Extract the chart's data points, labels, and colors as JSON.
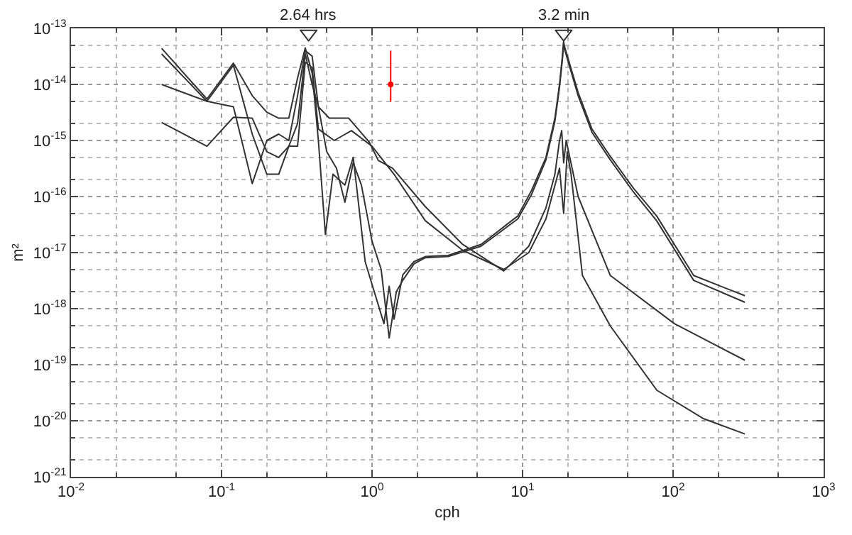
{
  "chart_data": {
    "type": "line",
    "xlabel": "cph",
    "ylabel": "m²",
    "log": "xy",
    "grid": true,
    "line_style": "solid",
    "xlim": [
      0.01,
      1000
    ],
    "ylim": [
      1e-21,
      1e-13
    ],
    "xticks": [
      {
        "value": 0.01,
        "label": "10$^{-2}$"
      },
      {
        "value": 0.1,
        "label": "10$^{-1}$"
      },
      {
        "value": 1,
        "label": "10$^{0}$"
      },
      {
        "value": 10,
        "label": "10$^{1}$"
      },
      {
        "value": 100,
        "label": "10$^{2}$"
      },
      {
        "value": 1000,
        "label": "10$^{3}$"
      }
    ],
    "yticks": [
      {
        "value": 1e-21,
        "label": "10$^{-21}$"
      },
      {
        "value": 1e-20,
        "label": "10$^{-20}$"
      },
      {
        "value": 1e-19,
        "label": "10$^{-19}$"
      },
      {
        "value": 1e-18,
        "label": "10$^{-18}$"
      },
      {
        "value": 1e-17,
        "label": "10$^{-17}$"
      },
      {
        "value": 1e-16,
        "label": "10$^{-16}$"
      },
      {
        "value": 1e-15,
        "label": "10$^{-15}$"
      },
      {
        "value": 1e-14,
        "label": "10$^{-14}$"
      },
      {
        "value": 1e-13,
        "label": "10$^{-13}$"
      }
    ],
    "annotations": [
      {
        "text": "2.64 hrs",
        "x": 0.379,
        "y": 1e-13
      },
      {
        "text": "3.2 min",
        "x": 18.75,
        "y": 1e-13
      }
    ],
    "series": [
      {
        "type": "line",
        "color": "#333333",
        "x": [
          0.04,
          0.08,
          0.12,
          0.16,
          0.2,
          0.24,
          0.28,
          0.32,
          0.36,
          0.4,
          0.44,
          0.49,
          0.55,
          0.66,
          0.75,
          0.9,
          1.2,
          1.3,
          1.4,
          1.6,
          1.9,
          2.26,
          3.2,
          5.3,
          9.3,
          11.5,
          14.3,
          16.4,
          17.6,
          18.4,
          18.75,
          18.9,
          23.4,
          28.9,
          38.3,
          54.6,
          77.8,
          137,
          300
        ],
        "values": [
          4.4e-14,
          5.5e-15,
          2.4e-14,
          6.3e-15,
          3.2e-15,
          2.5e-15,
          2.5e-15,
          1.3e-14,
          4.5e-14,
          1.6e-14,
          1e-15,
          2.1e-17,
          2.5e-16,
          1.6e-16,
          5e-16,
          6.9e-18,
          5.4e-19,
          2.5e-18,
          6.5e-19,
          4e-18,
          6.9e-18,
          8.5e-18,
          8.9e-18,
          1.4e-17,
          4.5e-17,
          1.3e-16,
          5e-16,
          2.5e-15,
          1e-14,
          3.2e-14,
          5.9e-14,
          5e-14,
          7.2e-15,
          1.6e-15,
          5.2e-16,
          1.4e-16,
          4.5e-17,
          3.9e-18,
          1.7e-18
        ]
      },
      {
        "type": "line",
        "color": "#333333",
        "x": [
          0.04,
          0.08,
          0.12,
          0.16,
          0.2,
          0.24,
          0.28,
          0.32,
          0.36,
          0.4,
          0.44,
          0.5,
          0.58,
          0.66,
          0.75,
          0.85,
          1.0,
          1.15,
          1.3,
          1.45,
          1.6,
          1.9,
          2.26,
          3.2,
          5.3,
          9.3,
          11.5,
          14.3,
          16.4,
          17.6,
          18.4,
          18.75,
          18.9,
          23.4,
          28.9,
          38.3,
          54.6,
          77.8,
          137,
          300
        ],
        "values": [
          3.5e-14,
          5e-15,
          2.2e-14,
          1.3e-15,
          2.5e-16,
          2.5e-16,
          7.9e-16,
          2e-15,
          3.5e-14,
          1e-14,
          4e-15,
          6.3e-16,
          3.2e-16,
          7.9e-17,
          4e-16,
          1.6e-16,
          1.6e-17,
          5e-18,
          3e-19,
          2e-18,
          3.2e-18,
          6.3e-18,
          8.1e-18,
          8.5e-18,
          1.3e-17,
          4e-17,
          1.1e-16,
          4.5e-16,
          2.2e-15,
          8.9e-15,
          2.8e-14,
          5.6e-14,
          4.5e-14,
          6.3e-15,
          1.4e-15,
          4.5e-16,
          1.2e-16,
          3.7e-17,
          3.2e-18,
          1.3e-18
        ]
      },
      {
        "type": "line",
        "color": "#333333",
        "x": [
          0.04,
          0.08,
          0.12,
          0.16,
          0.2,
          0.24,
          0.28,
          0.32,
          0.36,
          0.4,
          0.44,
          0.52,
          0.7,
          0.96,
          1.1,
          1.37,
          2.26,
          4,
          7.5,
          11,
          14.3,
          16.4,
          17.6,
          18.2,
          18.75,
          19.5,
          23.4,
          38.3,
          102,
          300
        ],
        "values": [
          1e-14,
          5e-15,
          4e-15,
          1.7e-16,
          1e-15,
          1.3e-15,
          1e-15,
          6.3e-15,
          4e-14,
          3.2e-14,
          4e-15,
          2.5e-15,
          2.5e-15,
          9.3e-16,
          4.4e-16,
          3.2e-16,
          6.6e-17,
          1.4e-17,
          4.7e-18,
          1.3e-17,
          6.3e-17,
          2.5e-16,
          1e-15,
          1.5e-15,
          4e-16,
          1e-15,
          1e-16,
          3.9e-18,
          5.4e-19,
          1.2e-19
        ]
      },
      {
        "type": "line",
        "color": "#333333",
        "x": [
          0.04,
          0.08,
          0.12,
          0.16,
          0.2,
          0.24,
          0.28,
          0.32,
          0.36,
          0.4,
          0.44,
          0.56,
          0.73,
          1.0,
          1.4,
          2.26,
          4,
          7.5,
          11,
          14.3,
          17.6,
          18.75,
          19.8,
          21,
          25,
          38.3,
          78,
          158,
          300
        ],
        "values": [
          2.1e-15,
          7.9e-16,
          2.6e-15,
          2.5e-15,
          6.3e-16,
          5e-16,
          7.9e-16,
          7.9e-16,
          2.5e-14,
          2e-14,
          1.6e-15,
          1e-15,
          1.5e-15,
          7.9e-16,
          2.5e-16,
          3.7e-17,
          1.1e-17,
          5e-18,
          1e-17,
          4e-17,
          3.2e-16,
          5e-17,
          6.3e-16,
          2.5e-16,
          3.9e-18,
          4.9e-19,
          3.5e-20,
          1.1e-20,
          5.8e-21
        ]
      },
      {
        "type": "scatter",
        "marker": "circle",
        "color": "#ff0000",
        "x": [
          1.33
        ],
        "values": [
          1e-14
        ],
        "errors": [
          [
            4.9e-15,
            4e-14
          ]
        ]
      },
      {
        "type": "scatter",
        "marker": "triangle",
        "color": "#333333",
        "x": [
          0.379,
          18.75
        ],
        "values": [
          8e-14,
          8e-14
        ]
      }
    ]
  }
}
